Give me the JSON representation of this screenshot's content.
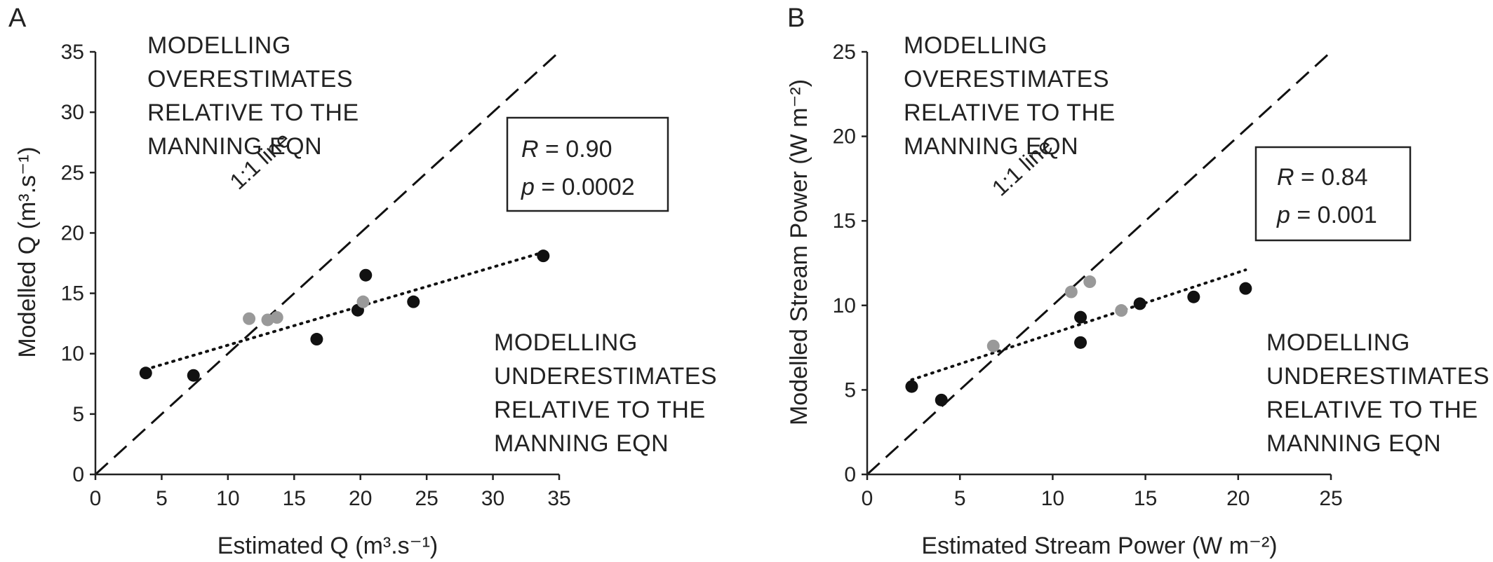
{
  "chart_data": [
    {
      "panel": "A",
      "type": "scatter",
      "xlabel": "Estimated Q (m³.s⁻¹)",
      "ylabel": "Modelled Q (m³.s⁻¹)",
      "xlim": [
        0,
        35
      ],
      "ylim": [
        0,
        35
      ],
      "xticks": [
        0,
        5,
        10,
        15,
        20,
        25,
        30,
        35
      ],
      "yticks": [
        0,
        5,
        10,
        15,
        20,
        25,
        30,
        35
      ],
      "grid": false,
      "series": [
        {
          "color": "#111111",
          "points": [
            [
              3.8,
              8.4
            ],
            [
              7.4,
              8.2
            ],
            [
              16.7,
              11.2
            ],
            [
              19.8,
              13.6
            ],
            [
              20.4,
              16.5
            ],
            [
              24.0,
              14.3
            ],
            [
              33.8,
              18.1
            ]
          ]
        },
        {
          "color": "#999999",
          "points": [
            [
              11.6,
              12.9
            ],
            [
              13.0,
              12.8
            ],
            [
              13.7,
              13.0
            ],
            [
              20.2,
              14.3
            ]
          ]
        }
      ],
      "reference_line": {
        "label": "1:1 line",
        "from": [
          0,
          0
        ],
        "to": [
          35,
          35
        ]
      },
      "trend_line": {
        "from": [
          3.8,
          8.7
        ],
        "to": [
          33.8,
          18.4
        ]
      },
      "stats": {
        "r_symbol": "R",
        "r_value": " = 0.90",
        "p_symbol": "p",
        "p_value": " = 0.0002"
      },
      "annotations": {
        "over": [
          "MODELLING",
          "OVERESTIMATES",
          "RELATIVE TO THE",
          "MANNING EQN"
        ],
        "under": [
          "MODELLING",
          "UNDERESTIMATES",
          "RELATIVE TO THE",
          "MANNING EQN"
        ]
      }
    },
    {
      "panel": "B",
      "type": "scatter",
      "xlabel": "Estimated Stream Power (W m⁻²)",
      "ylabel": "Modelled Stream Power (W m⁻²)",
      "xlim": [
        0,
        25
      ],
      "ylim": [
        0,
        25
      ],
      "xticks": [
        0,
        5,
        10,
        15,
        20,
        25
      ],
      "yticks": [
        0,
        5,
        10,
        15,
        20,
        25
      ],
      "grid": false,
      "series": [
        {
          "color": "#111111",
          "points": [
            [
              2.4,
              5.2
            ],
            [
              4.0,
              4.4
            ],
            [
              11.5,
              9.3
            ],
            [
              11.5,
              7.8
            ],
            [
              14.7,
              10.1
            ],
            [
              17.6,
              10.5
            ],
            [
              20.4,
              11.0
            ]
          ]
        },
        {
          "color": "#999999",
          "points": [
            [
              6.8,
              7.6
            ],
            [
              11.0,
              10.8
            ],
            [
              12.0,
              11.4
            ],
            [
              13.7,
              9.7
            ]
          ]
        }
      ],
      "reference_line": {
        "label": "1:1 line",
        "from": [
          0,
          0
        ],
        "to": [
          25,
          25
        ]
      },
      "trend_line": {
        "from": [
          2.4,
          5.6
        ],
        "to": [
          20.4,
          12.1
        ]
      },
      "stats": {
        "r_symbol": "R",
        "r_value": " = 0.84",
        "p_symbol": "p",
        "p_value": " = 0.001"
      },
      "annotations": {
        "over": [
          "MODELLING",
          "OVERESTIMATES",
          "RELATIVE TO THE",
          "MANNING EQN"
        ],
        "under": [
          "MODELLING",
          "UNDERESTIMATES",
          "RELATIVE TO THE",
          "MANNING EQN"
        ]
      }
    }
  ]
}
